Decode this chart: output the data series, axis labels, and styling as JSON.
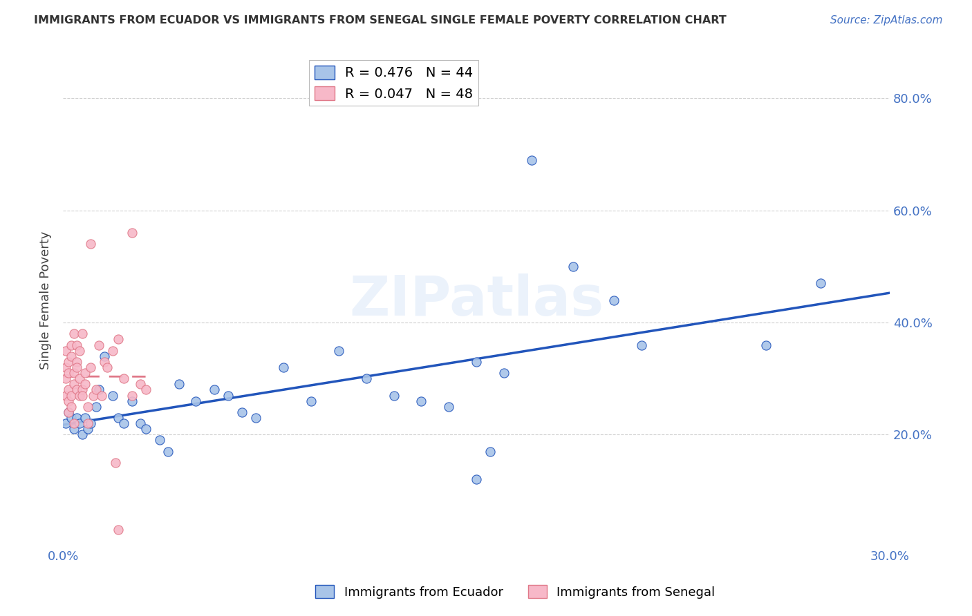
{
  "title": "IMMIGRANTS FROM ECUADOR VS IMMIGRANTS FROM SENEGAL SINGLE FEMALE POVERTY CORRELATION CHART",
  "source": "Source: ZipAtlas.com",
  "ylabel": "Single Female Poverty",
  "xlim": [
    0.0,
    0.3
  ],
  "ylim": [
    0.0,
    0.88
  ],
  "yticks_right": [
    0.2,
    0.4,
    0.6,
    0.8
  ],
  "ytick_labels_right": [
    "20.0%",
    "40.0%",
    "60.0%",
    "80.0%"
  ],
  "xticks": [
    0.0,
    0.05,
    0.1,
    0.15,
    0.2,
    0.25,
    0.3
  ],
  "ecuador_R": 0.476,
  "ecuador_N": 44,
  "senegal_R": 0.047,
  "senegal_N": 48,
  "ecuador_color": "#a8c4e8",
  "senegal_color": "#f7b8c8",
  "ecuador_line_color": "#2255bb",
  "senegal_line_color": "#e07888",
  "watermark": "ZIPatlas",
  "ecuador_x": [
    0.001,
    0.002,
    0.003,
    0.004,
    0.005,
    0.006,
    0.007,
    0.008,
    0.009,
    0.01,
    0.012,
    0.013,
    0.015,
    0.018,
    0.02,
    0.022,
    0.025,
    0.028,
    0.03,
    0.035,
    0.038,
    0.042,
    0.048,
    0.055,
    0.06,
    0.065,
    0.07,
    0.08,
    0.09,
    0.1,
    0.11,
    0.12,
    0.13,
    0.14,
    0.15,
    0.155,
    0.16,
    0.17,
    0.185,
    0.2,
    0.15,
    0.21,
    0.255,
    0.275
  ],
  "ecuador_y": [
    0.22,
    0.24,
    0.23,
    0.21,
    0.23,
    0.22,
    0.2,
    0.23,
    0.21,
    0.22,
    0.25,
    0.28,
    0.34,
    0.27,
    0.23,
    0.22,
    0.26,
    0.22,
    0.21,
    0.19,
    0.17,
    0.29,
    0.26,
    0.28,
    0.27,
    0.24,
    0.23,
    0.32,
    0.26,
    0.35,
    0.3,
    0.27,
    0.26,
    0.25,
    0.33,
    0.17,
    0.31,
    0.69,
    0.5,
    0.44,
    0.12,
    0.36,
    0.36,
    0.47
  ],
  "senegal_x": [
    0.001,
    0.001,
    0.001,
    0.001,
    0.002,
    0.002,
    0.002,
    0.002,
    0.002,
    0.003,
    0.003,
    0.003,
    0.003,
    0.004,
    0.004,
    0.004,
    0.004,
    0.005,
    0.005,
    0.005,
    0.005,
    0.006,
    0.006,
    0.006,
    0.007,
    0.007,
    0.007,
    0.008,
    0.008,
    0.009,
    0.009,
    0.01,
    0.01,
    0.011,
    0.012,
    0.013,
    0.014,
    0.015,
    0.016,
    0.018,
    0.019,
    0.02,
    0.022,
    0.025,
    0.028,
    0.03,
    0.025,
    0.02
  ],
  "senegal_y": [
    0.27,
    0.3,
    0.32,
    0.35,
    0.28,
    0.31,
    0.33,
    0.26,
    0.24,
    0.34,
    0.36,
    0.25,
    0.27,
    0.29,
    0.31,
    0.22,
    0.38,
    0.28,
    0.36,
    0.33,
    0.32,
    0.35,
    0.27,
    0.3,
    0.28,
    0.38,
    0.27,
    0.29,
    0.31,
    0.25,
    0.22,
    0.54,
    0.32,
    0.27,
    0.28,
    0.36,
    0.27,
    0.33,
    0.32,
    0.35,
    0.15,
    0.37,
    0.3,
    0.27,
    0.29,
    0.28,
    0.56,
    0.03
  ]
}
